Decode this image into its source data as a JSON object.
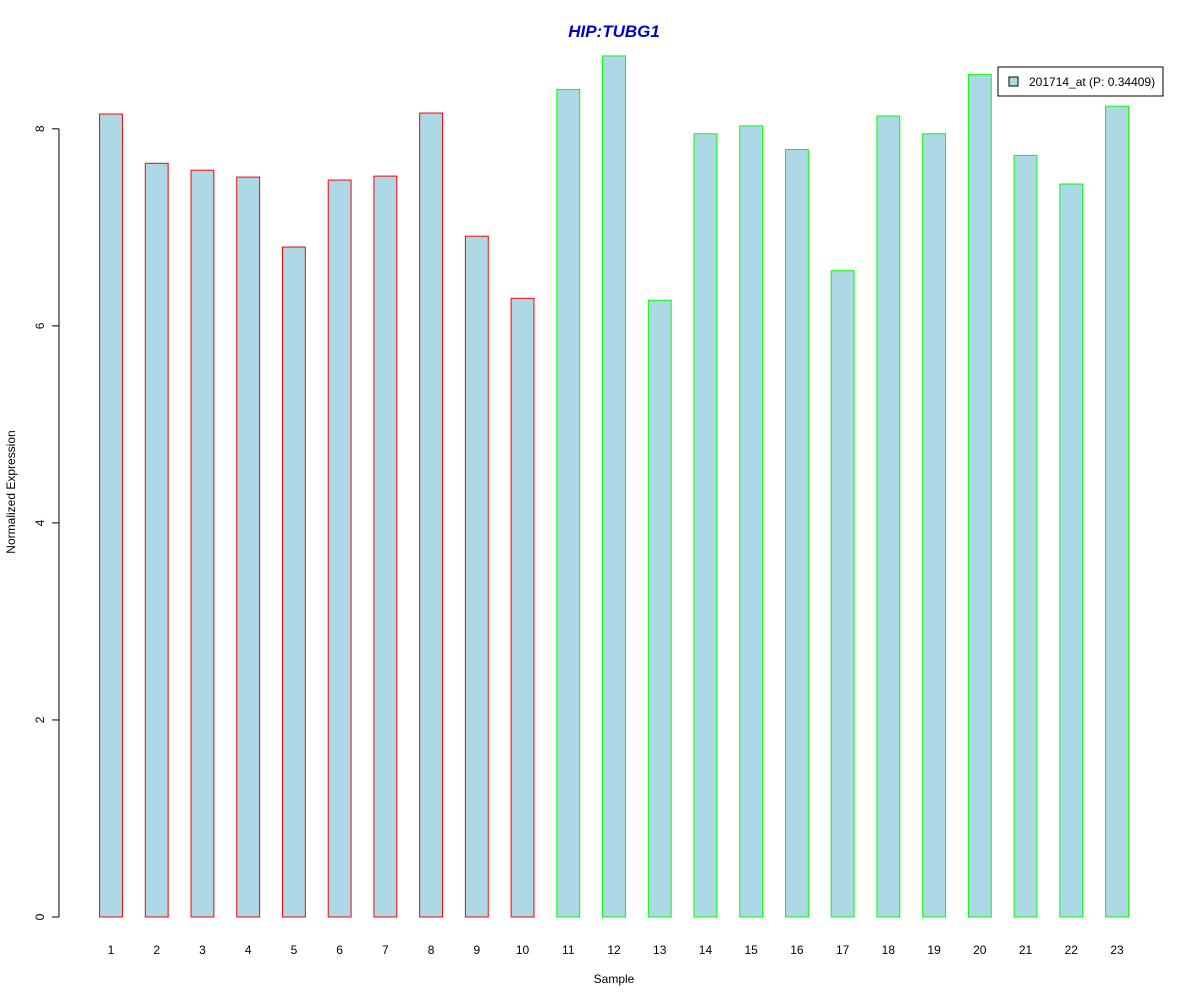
{
  "chart_data": {
    "type": "bar",
    "title": "HIP:TUBG1",
    "xlabel": "Sample",
    "ylabel": "Normalized Expression",
    "categories": [
      "1",
      "2",
      "3",
      "4",
      "5",
      "6",
      "7",
      "8",
      "9",
      "10",
      "11",
      "12",
      "13",
      "14",
      "15",
      "16",
      "17",
      "18",
      "19",
      "20",
      "21",
      "22",
      "23"
    ],
    "series": [
      {
        "name": "201714_at (P: 0.34409)",
        "values": [
          8.15,
          7.65,
          7.58,
          7.51,
          6.8,
          7.48,
          7.52,
          8.16,
          6.91,
          6.28,
          8.4,
          8.74,
          6.26,
          7.95,
          8.03,
          7.79,
          6.56,
          8.13,
          7.95,
          8.55,
          7.73,
          7.44,
          8.23
        ]
      }
    ],
    "groups": [
      {
        "samples": [
          1,
          10
        ],
        "border_color": "#ff0000"
      },
      {
        "samples": [
          11,
          23
        ],
        "border_color": "#00ff00"
      }
    ],
    "ylim": [
      0,
      8.8
    ],
    "yticks": [
      0,
      2,
      4,
      6,
      8
    ],
    "bar_fill": "#add8e6",
    "title_color": "#0000cc",
    "grid": false,
    "legend_position": "top-right"
  }
}
